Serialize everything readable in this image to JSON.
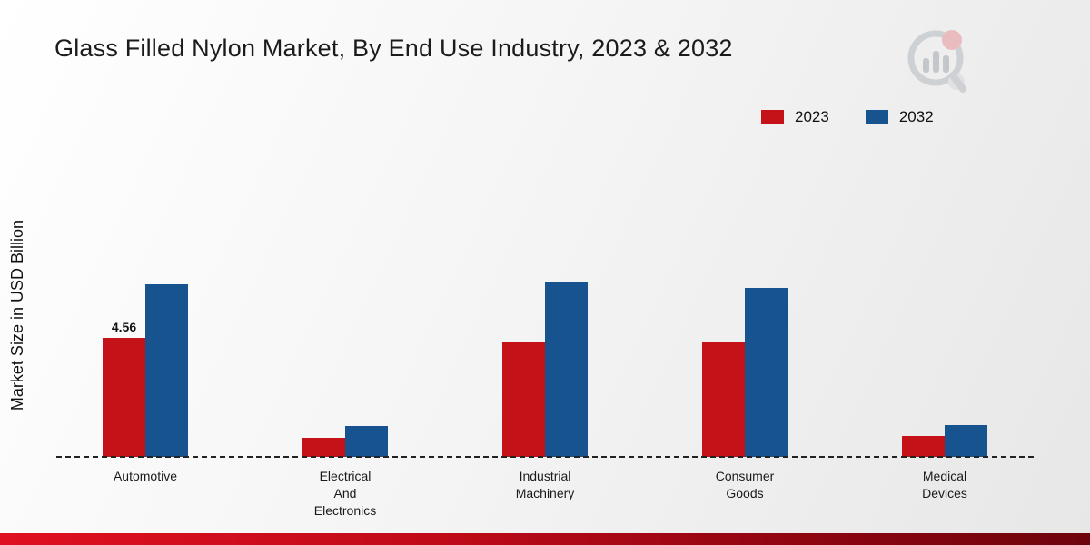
{
  "title": "Glass Filled Nylon Market, By End Use Industry, 2023 & 2032",
  "ylabel": "Market Size in USD Billion",
  "legend": {
    "items": [
      {
        "label": "2023",
        "color": "#c51218"
      },
      {
        "label": "2032",
        "color": "#17538f"
      }
    ],
    "position": "top-right"
  },
  "icons": {
    "brand_logo": "bar-chart-magnifier-logo"
  },
  "colors": {
    "series_2023": "#c51218",
    "series_2032": "#17538f",
    "baseline": "#222222",
    "bottom_band_left": "#e01020",
    "bottom_band_right": "#6e030c",
    "background_top": "#ffffff",
    "background_bottom": "#e7e7e7"
  },
  "chart_data": {
    "type": "bar",
    "title": "Glass Filled Nylon Market, By End Use Industry, 2023 & 2032",
    "xlabel": "",
    "ylabel": "Market Size in USD Billion",
    "categories": [
      "Automotive",
      "Electrical And Electronics",
      "Industrial Machinery",
      "Consumer Goods",
      "Medical Devices"
    ],
    "category_lines": [
      [
        "Automotive"
      ],
      [
        "Electrical",
        "And",
        "Electronics"
      ],
      [
        "Industrial",
        "Machinery"
      ],
      [
        "Consumer",
        "Goods"
      ],
      [
        "Medical",
        "Devices"
      ]
    ],
    "series": [
      {
        "name": "2023",
        "color": "#c51218",
        "values": [
          4.56,
          0.73,
          4.39,
          4.42,
          0.8
        ],
        "labels": [
          "4.56",
          "",
          "",
          "",
          ""
        ]
      },
      {
        "name": "2032",
        "color": "#17538f",
        "values": [
          6.61,
          1.18,
          6.68,
          6.48,
          1.22
        ],
        "labels": [
          "",
          "",
          "",
          "",
          ""
        ]
      }
    ],
    "ylim": [
      0,
      7.5
    ],
    "units": "USD Billion",
    "grid": false,
    "baseline_dashed": true,
    "legend_position": "top-right"
  }
}
